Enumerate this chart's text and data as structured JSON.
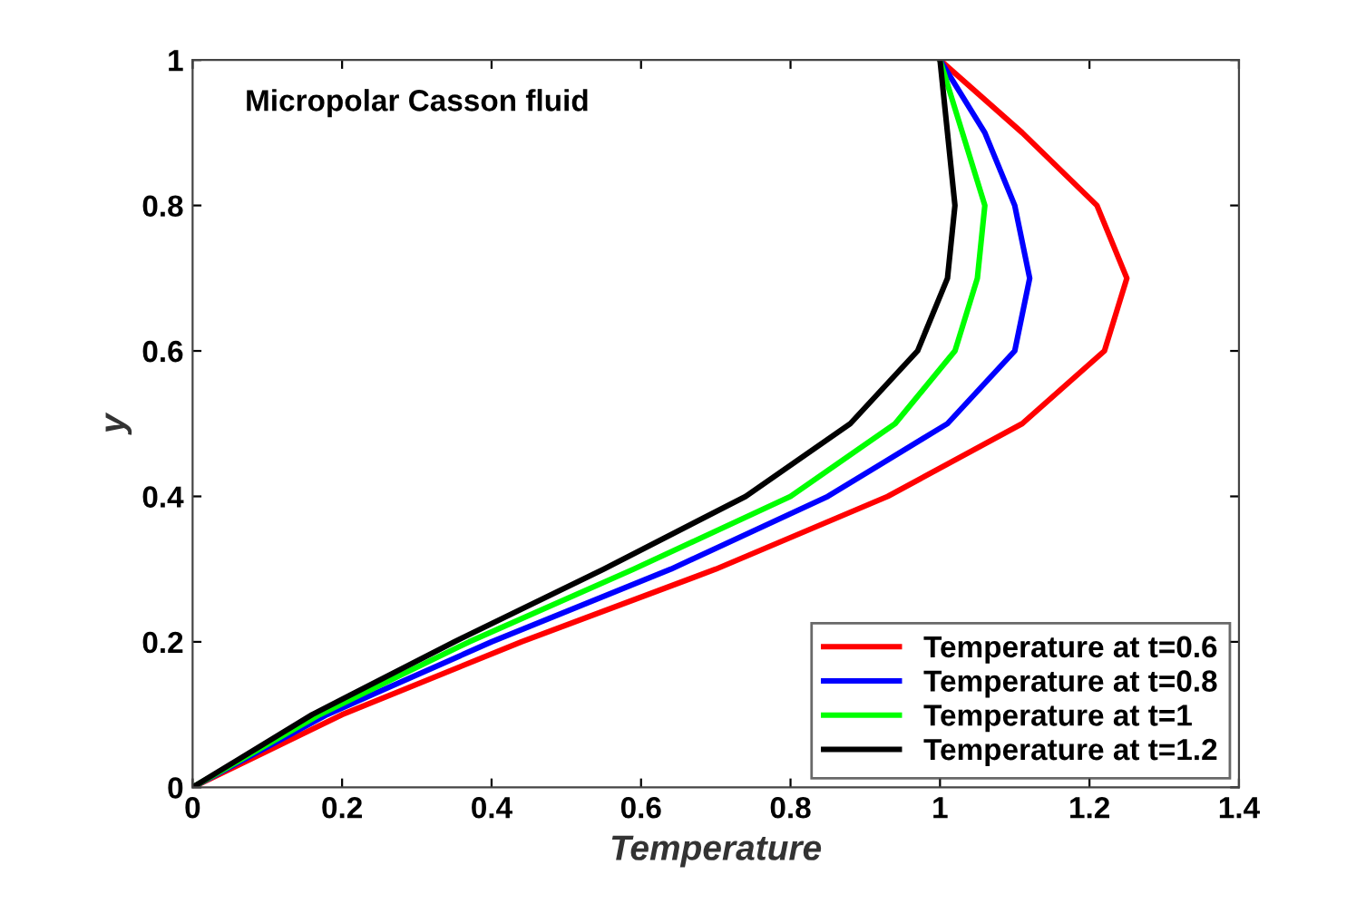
{
  "chart_data": {
    "type": "line",
    "xlabel": "Temperature",
    "ylabel": "y",
    "annotations": [
      "Micropolar Casson fluid"
    ],
    "xlim": [
      0,
      1.4
    ],
    "ylim": [
      0,
      1
    ],
    "xticks": [
      0,
      0.2,
      0.4,
      0.6,
      0.8,
      1,
      1.2,
      1.4
    ],
    "yticks": [
      0,
      0.2,
      0.4,
      0.6,
      0.8,
      1
    ],
    "grid": false,
    "legend": "bottom right",
    "marker": "none",
    "line_style": "solid",
    "series": [
      {
        "name": "Temperature at t=0.6",
        "color": "#ff0000",
        "x": [
          0,
          0.2,
          0.44,
          0.7,
          0.93,
          1.11,
          1.22,
          1.25,
          1.21,
          1.11,
          1
        ],
        "values": [
          0,
          0.1,
          0.2,
          0.3,
          0.4,
          0.5,
          0.6,
          0.7,
          0.8,
          0.9,
          1
        ]
      },
      {
        "name": "Temperature at t=0.8",
        "color": "#0000ff",
        "x": [
          0,
          0.18,
          0.4,
          0.64,
          0.85,
          1.01,
          1.1,
          1.12,
          1.1,
          1.06,
          1
        ],
        "values": [
          0,
          0.1,
          0.2,
          0.3,
          0.4,
          0.5,
          0.6,
          0.7,
          0.8,
          0.9,
          1
        ]
      },
      {
        "name": "Temperature at t=1",
        "color": "#00ff00",
        "x": [
          0,
          0.17,
          0.37,
          0.59,
          0.8,
          0.94,
          1.02,
          1.05,
          1.06,
          1.03,
          1
        ],
        "values": [
          0,
          0.1,
          0.2,
          0.3,
          0.4,
          0.5,
          0.6,
          0.7,
          0.8,
          0.9,
          1
        ]
      },
      {
        "name": "Temperature at t=1.2",
        "color": "#000000",
        "x": [
          0,
          0.16,
          0.35,
          0.55,
          0.74,
          0.88,
          0.97,
          1.01,
          1.02,
          1.01,
          1
        ],
        "values": [
          0,
          0.1,
          0.2,
          0.3,
          0.4,
          0.5,
          0.6,
          0.7,
          0.8,
          0.9,
          1
        ]
      }
    ]
  }
}
